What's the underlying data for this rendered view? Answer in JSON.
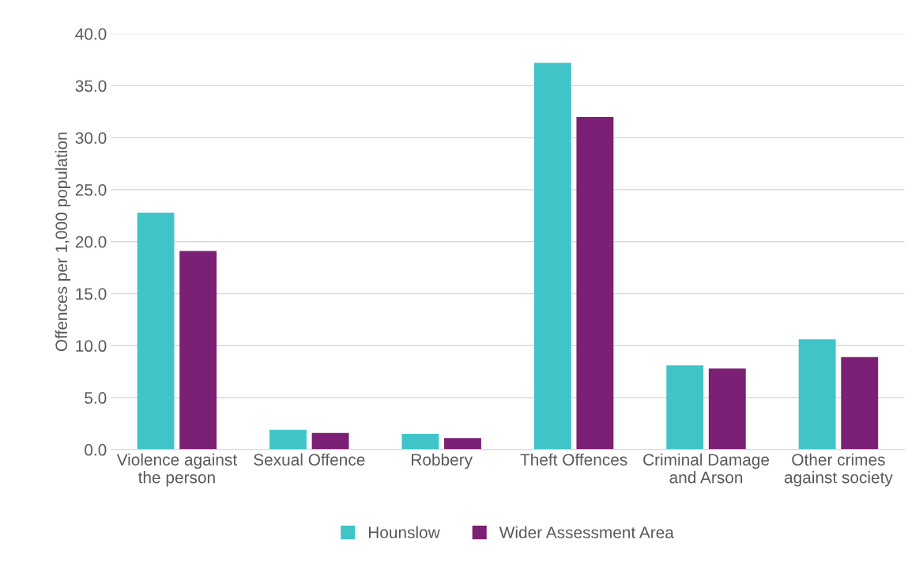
{
  "chart_data": {
    "type": "bar",
    "ylabel": "Offences per 1,000 population",
    "categories": [
      "Violence against\nthe person",
      "Sexual Offence",
      "Robbery",
      "Theft Offences",
      "Criminal Damage\nand Arson",
      "Other crimes\nagainst society"
    ],
    "series": [
      {
        "name": "Hounslow",
        "color": "#40c4c8",
        "values": [
          22.8,
          1.9,
          1.5,
          37.2,
          8.1,
          10.6
        ]
      },
      {
        "name": "Wider Assessment Area",
        "color": "#7b2074",
        "values": [
          19.1,
          1.6,
          1.1,
          32.0,
          7.8,
          8.9
        ]
      }
    ],
    "ylim": [
      0,
      40
    ],
    "yticks": [
      {
        "value": 0,
        "label": "0.0"
      },
      {
        "value": 5,
        "label": "5.0"
      },
      {
        "value": 10,
        "label": "10.0"
      },
      {
        "value": 15,
        "label": "15.0"
      },
      {
        "value": 20,
        "label": "20.0"
      },
      {
        "value": 25,
        "label": "25.0"
      },
      {
        "value": 30,
        "label": "30.0"
      },
      {
        "value": 35,
        "label": "35.0"
      },
      {
        "value": 40,
        "label": "40.0"
      }
    ],
    "grid": "y",
    "legend": "bottom"
  }
}
